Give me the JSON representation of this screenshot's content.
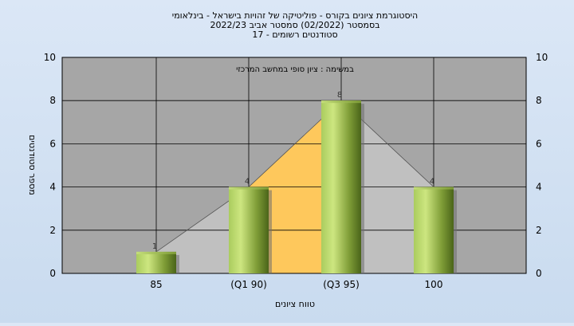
{
  "chart_data": {
    "type": "bar",
    "title_lines": [
      "היסטוגרמת ציונים בקורס - פוליטיקה של זהויות בישראל - בינלאומי",
      "בסמסטר  (02/2022)  סמסטר אביב 2022/23",
      "סטודנטים רשומים - 17"
    ],
    "subtitle": "במשימה : ציון סופי במחשב המרכזי",
    "xlabel": "טווח ציונים",
    "ylabel": "מספר סטודנטים",
    "categories": [
      "85",
      "(Q1 90)",
      "(Q3 95)",
      "100"
    ],
    "values": [
      1,
      4,
      8,
      4
    ],
    "data_labels": [
      "1",
      "4",
      "8",
      "4"
    ],
    "ylim": [
      0,
      10
    ],
    "yticks": [
      "0",
      "2",
      "4",
      "6",
      "8",
      "10"
    ],
    "grid": true,
    "colors": {
      "plot_bg": "#a6a6a6",
      "bar_light": "#c6e07a",
      "bar_dark": "#4f6b1e",
      "band_gray": "#c0c0c0",
      "band_orange": "#fec85c",
      "grid": "#000000"
    }
  }
}
